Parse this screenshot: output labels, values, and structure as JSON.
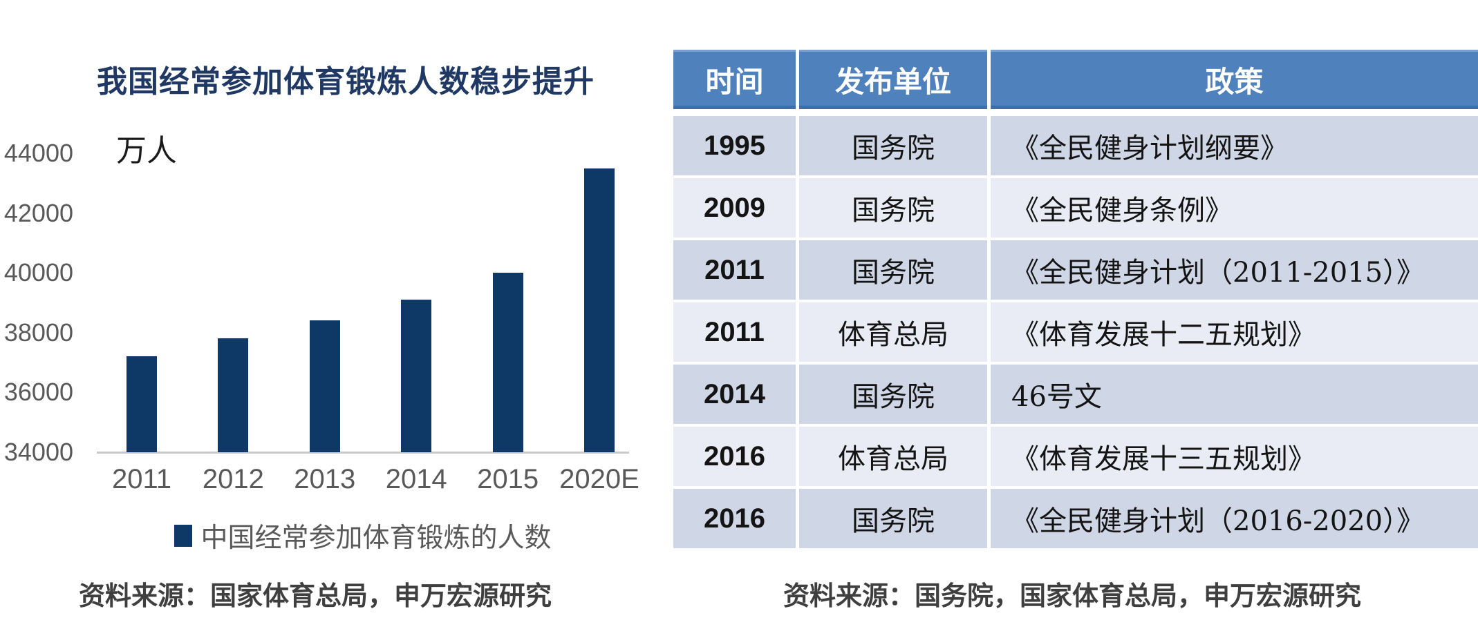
{
  "chart": {
    "title": "我国经常参加体育锻炼人数稳步提升",
    "unit_label": "万人",
    "legend": {
      "label": "中国经常参加体育锻炼的人数",
      "swatch_color": "#0E3866"
    },
    "source": "资料来源：国家体育总局，申万宏源研究",
    "colors": {
      "bar": "#0E3866",
      "title": "#1F3864",
      "axis_text": "#595959",
      "axis_line": "#C9C9C9",
      "source_text": "#3F3F3F"
    }
  },
  "chart_data": {
    "type": "bar",
    "title": "我国经常参加体育锻炼人数稳步提升",
    "categories": [
      "2011",
      "2012",
      "2013",
      "2014",
      "2015",
      "2020E"
    ],
    "values": [
      37200,
      37800,
      38400,
      39100,
      40000,
      43500
    ],
    "series_name": "中国经常参加体育锻炼的人数",
    "unit": "万人",
    "xlabel": "",
    "ylabel": "万人",
    "ylim": [
      34000,
      44000
    ],
    "yticks": [
      44000,
      42000,
      40000,
      38000,
      36000,
      34000
    ],
    "grid": false,
    "legend_position": "bottom"
  },
  "table": {
    "headers": [
      "时间",
      "发布单位",
      "政策"
    ],
    "rows": [
      [
        "1995",
        "国务院",
        "《全民健身计划纲要》"
      ],
      [
        "2009",
        "国务院",
        "《全民健身条例》"
      ],
      [
        "2011",
        "国务院",
        "《全民健身计划（2011-2015）》"
      ],
      [
        "2011",
        "体育总局",
        "《体育发展十二五规划》"
      ],
      [
        "2014",
        "国务院",
        "46号文"
      ],
      [
        "2016",
        "体育总局",
        "《体育发展十三五规划》"
      ],
      [
        "2016",
        "国务院",
        "《全民健身计划（2016-2020）》"
      ]
    ],
    "source": "资料来源：国务院，国家体育总局，申万宏源研究",
    "colors": {
      "header_bg": "#4F81BD",
      "header_text": "#FFFFFF",
      "row_dark": "#CFD6E5",
      "row_light": "#E9ECF4"
    }
  }
}
